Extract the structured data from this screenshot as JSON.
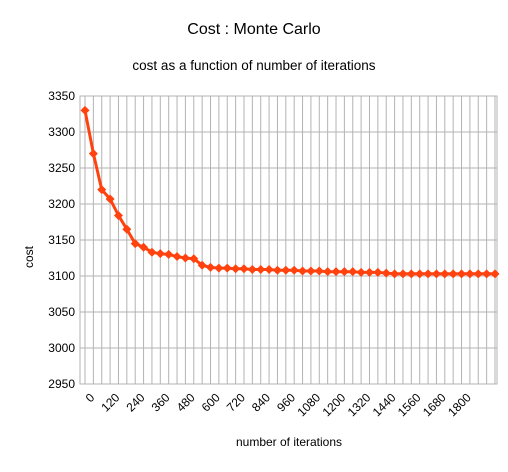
{
  "chart_data": {
    "type": "line",
    "title": "Cost : Monte Carlo",
    "subtitle": "cost as a function of number of iterations",
    "xlabel": "number of iterations",
    "ylabel": "cost",
    "ylim": [
      2950,
      3350
    ],
    "yticks": [
      2950,
      3000,
      3050,
      3100,
      3150,
      3200,
      3250,
      3300,
      3350
    ],
    "xticks": [
      0,
      120,
      240,
      360,
      480,
      600,
      720,
      840,
      960,
      1080,
      1200,
      1320,
      1440,
      1560,
      1680,
      1800
    ],
    "grid": true,
    "legend": "none",
    "series": [
      {
        "color": "#ff420e",
        "marker": "diamond",
        "x": [
          0,
          40,
          80,
          120,
          160,
          200,
          240,
          280,
          320,
          360,
          400,
          440,
          480,
          520,
          560,
          600,
          640,
          680,
          720,
          760,
          800,
          840,
          880,
          920,
          960,
          1000,
          1040,
          1080,
          1120,
          1160,
          1200,
          1240,
          1280,
          1320,
          1360,
          1400,
          1440,
          1480,
          1520,
          1560,
          1600,
          1640,
          1680,
          1720,
          1760,
          1800,
          1840,
          1880,
          1920,
          1960
        ],
        "y": [
          3330,
          3270,
          3220,
          3207,
          3184,
          3165,
          3145,
          3140,
          3133,
          3131,
          3130,
          3127,
          3125,
          3124,
          3115,
          3112,
          3111,
          3111,
          3110,
          3110,
          3109,
          3109,
          3109,
          3108,
          3108,
          3108,
          3107,
          3107,
          3107,
          3106,
          3106,
          3106,
          3106,
          3105,
          3105,
          3105,
          3104,
          3103,
          3103,
          3103,
          3103,
          3103,
          3103,
          3103,
          3103,
          3103,
          3103,
          3103,
          3103,
          3103
        ]
      }
    ]
  }
}
